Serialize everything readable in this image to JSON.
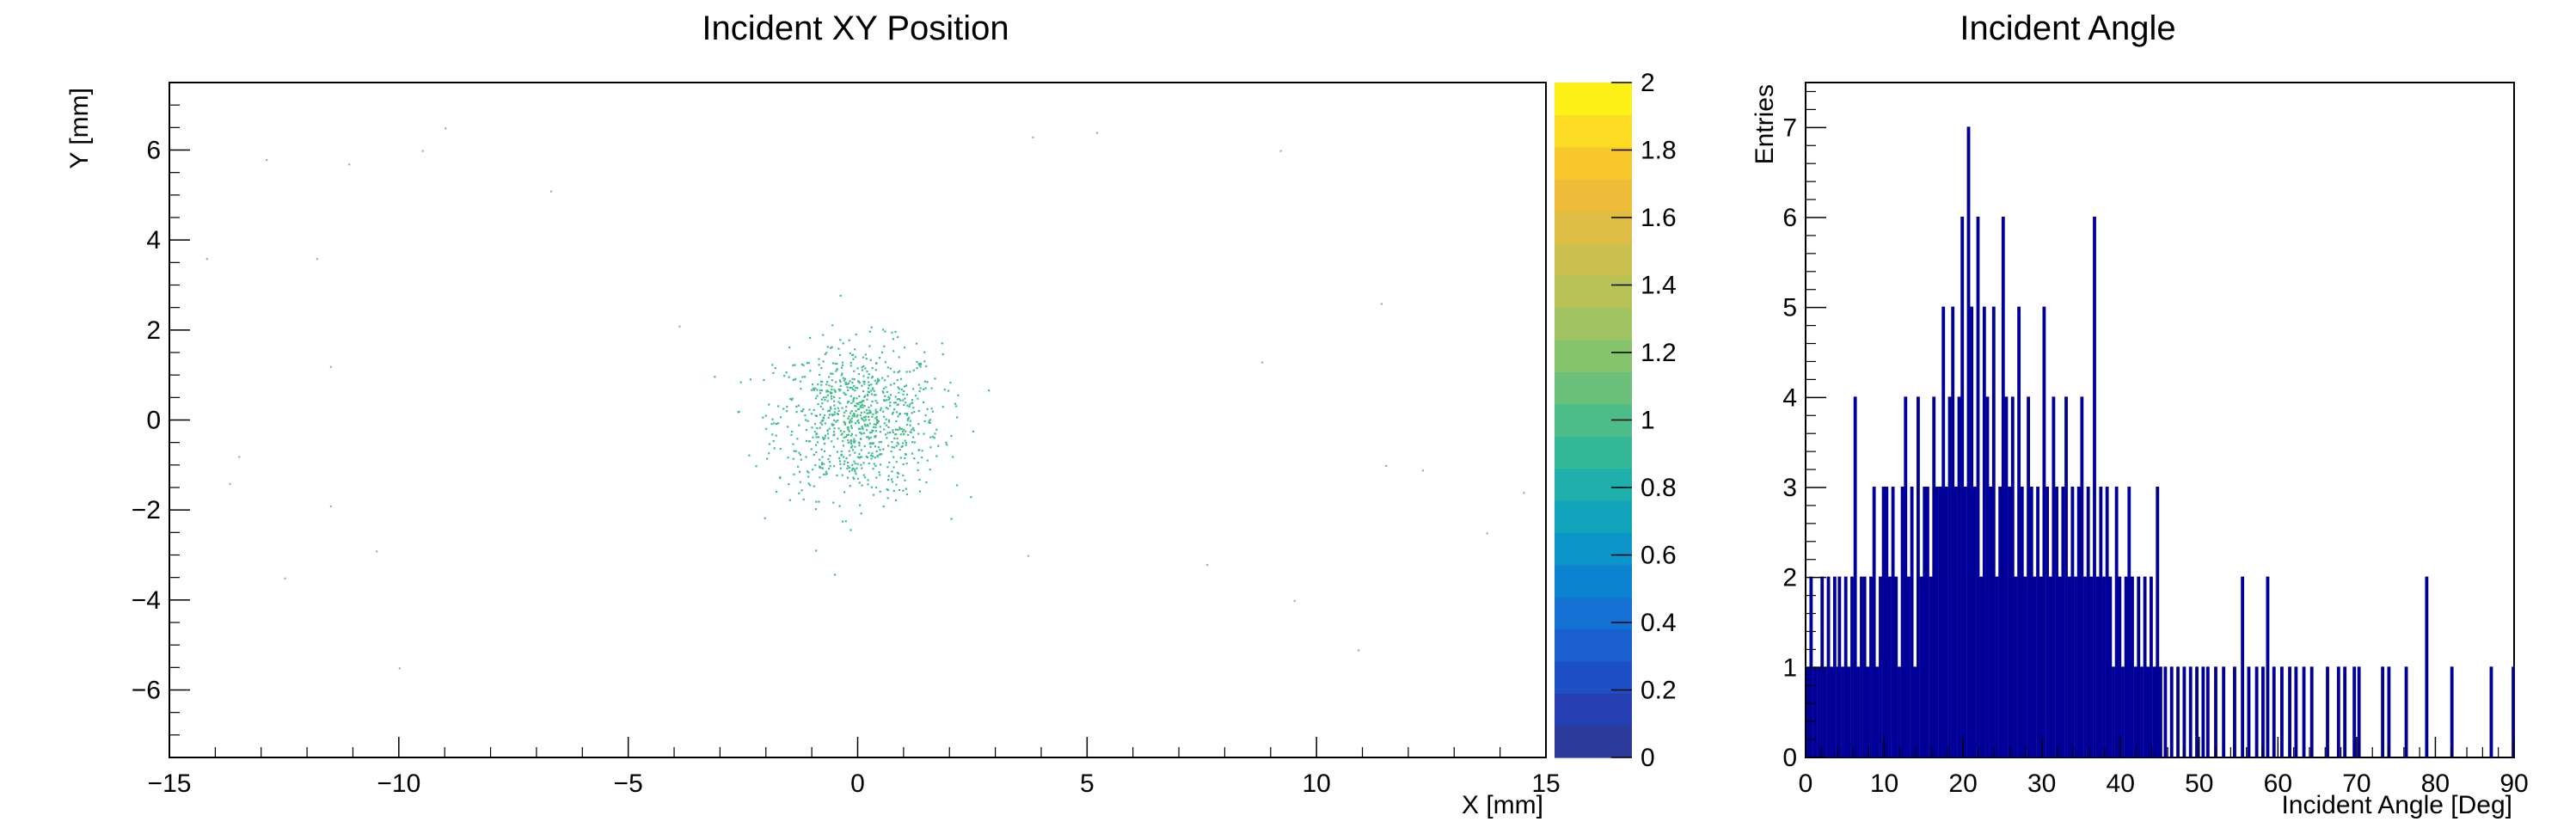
{
  "chart_data": [
    {
      "type": "heatmap",
      "title": "Incident XY Position",
      "xlabel": "X [mm]",
      "ylabel": "Y [mm]",
      "xlim": [
        -15,
        15
      ],
      "ylim": [
        -7.5,
        7.5
      ],
      "x_ticks": [
        "−15",
        "−10",
        "−5",
        "0",
        "5",
        "10",
        "15"
      ],
      "y_ticks": [
        "−6",
        "−4",
        "−2",
        "0",
        "2",
        "4",
        "6"
      ],
      "colorbar": {
        "range": [
          0,
          2
        ],
        "ticks": [
          "0",
          "0.2",
          "0.4",
          "0.6",
          "0.8",
          "1",
          "1.2",
          "1.4",
          "1.6",
          "1.8",
          "2"
        ],
        "colors": [
          "#2b3a9b",
          "#253fb3",
          "#1f4fc6",
          "#1a60d1",
          "#1371d4",
          "#0c83d0",
          "#0b95c8",
          "#12a3bc",
          "#1fafab",
          "#33b898",
          "#4cbd88",
          "#6ac07a",
          "#86c36d",
          "#a0c361",
          "#b8c256",
          "#cbbf4e",
          "#ddbd44",
          "#eebc38",
          "#f8c82c",
          "#fbdc22",
          "#fdf017"
        ]
      },
      "cluster": {
        "center": [
          0,
          0
        ],
        "sigma": [
          0.9,
          0.85
        ],
        "count": 900,
        "color": "#3fbd8b"
      },
      "outliers": {
        "points": [
          [
            -14.2,
            3.6
          ],
          [
            -13.5,
            -0.8
          ],
          [
            -13.7,
            -1.4
          ],
          [
            -12.9,
            5.8
          ],
          [
            -12.5,
            -3.5
          ],
          [
            -11.8,
            3.6
          ],
          [
            -11.5,
            1.2
          ],
          [
            -11.5,
            -1.9
          ],
          [
            -11.1,
            5.7
          ],
          [
            -10.5,
            -2.9
          ],
          [
            -10.0,
            -5.5
          ],
          [
            -9.5,
            6.0
          ],
          [
            -9.0,
            6.5
          ],
          [
            -6.7,
            5.1
          ],
          [
            -3.9,
            2.1
          ],
          [
            3.7,
            -3.0
          ],
          [
            3.8,
            6.3
          ],
          [
            5.2,
            6.4
          ],
          [
            7.6,
            -3.2
          ],
          [
            8.8,
            1.3
          ],
          [
            9.2,
            6.0
          ],
          [
            9.5,
            -4.0
          ],
          [
            10.9,
            -5.1
          ],
          [
            11.4,
            2.6
          ],
          [
            11.5,
            -1.0
          ],
          [
            12.3,
            -1.1
          ],
          [
            13.7,
            -2.5
          ],
          [
            14.5,
            -1.6
          ]
        ],
        "color": "#8ab0d8"
      }
    },
    {
      "type": "bar",
      "title": "Incident Angle",
      "xlabel": "Incident Angle [Deg]",
      "ylabel": "Entries",
      "xlim": [
        0,
        90
      ],
      "ylim": [
        0,
        7.5
      ],
      "x_ticks": [
        "0",
        "10",
        "20",
        "30",
        "40",
        "50",
        "60",
        "70",
        "80",
        "90"
      ],
      "y_ticks": [
        "0",
        "1",
        "2",
        "3",
        "4",
        "5",
        "6",
        "7"
      ],
      "bin_width": 0.2,
      "color": "#000099",
      "bins": [
        [
          0.2,
          1
        ],
        [
          0.6,
          2
        ],
        [
          1.0,
          1
        ],
        [
          1.2,
          1
        ],
        [
          1.6,
          1
        ],
        [
          2.0,
          2
        ],
        [
          2.4,
          1
        ],
        [
          2.8,
          2
        ],
        [
          3.2,
          1
        ],
        [
          3.6,
          2
        ],
        [
          4.0,
          1
        ],
        [
          4.2,
          2
        ],
        [
          4.6,
          1
        ],
        [
          5.0,
          2
        ],
        [
          5.4,
          1
        ],
        [
          5.8,
          2
        ],
        [
          6.2,
          4
        ],
        [
          6.6,
          1
        ],
        [
          7.0,
          2
        ],
        [
          7.4,
          2
        ],
        [
          7.8,
          1
        ],
        [
          8.2,
          2
        ],
        [
          8.6,
          3
        ],
        [
          9.0,
          1
        ],
        [
          9.4,
          2
        ],
        [
          9.8,
          3
        ],
        [
          10.2,
          3
        ],
        [
          10.6,
          2
        ],
        [
          11.0,
          3
        ],
        [
          11.4,
          2
        ],
        [
          11.8,
          1
        ],
        [
          12.2,
          3
        ],
        [
          12.6,
          4
        ],
        [
          13.0,
          2
        ],
        [
          13.4,
          3
        ],
        [
          13.8,
          1
        ],
        [
          14.2,
          4
        ],
        [
          14.6,
          2
        ],
        [
          15.0,
          3
        ],
        [
          15.4,
          3
        ],
        [
          15.8,
          2
        ],
        [
          16.2,
          4
        ],
        [
          16.6,
          3
        ],
        [
          17.0,
          3
        ],
        [
          17.4,
          5
        ],
        [
          17.8,
          3
        ],
        [
          18.2,
          4
        ],
        [
          18.6,
          5
        ],
        [
          19.0,
          3
        ],
        [
          19.4,
          4
        ],
        [
          19.8,
          6
        ],
        [
          20.2,
          3
        ],
        [
          20.6,
          7
        ],
        [
          21.0,
          5
        ],
        [
          21.4,
          3
        ],
        [
          21.8,
          6
        ],
        [
          22.2,
          2
        ],
        [
          22.6,
          5
        ],
        [
          23.0,
          4
        ],
        [
          23.4,
          3
        ],
        [
          23.8,
          5
        ],
        [
          24.2,
          2
        ],
        [
          24.6,
          3
        ],
        [
          25.0,
          6
        ],
        [
          25.4,
          4
        ],
        [
          25.8,
          3
        ],
        [
          26.2,
          4
        ],
        [
          26.6,
          2
        ],
        [
          27.0,
          5
        ],
        [
          27.4,
          3
        ],
        [
          27.8,
          2
        ],
        [
          28.2,
          4
        ],
        [
          28.6,
          3
        ],
        [
          29.0,
          2
        ],
        [
          29.4,
          3
        ],
        [
          29.8,
          2
        ],
        [
          30.2,
          5
        ],
        [
          30.6,
          3
        ],
        [
          31.0,
          2
        ],
        [
          31.4,
          4
        ],
        [
          31.8,
          3
        ],
        [
          32.2,
          2
        ],
        [
          32.6,
          3
        ],
        [
          33.0,
          4
        ],
        [
          33.4,
          2
        ],
        [
          33.8,
          3
        ],
        [
          34.2,
          2
        ],
        [
          34.6,
          3
        ],
        [
          35.0,
          4
        ],
        [
          35.4,
          2
        ],
        [
          35.8,
          3
        ],
        [
          36.2,
          2
        ],
        [
          36.6,
          6
        ],
        [
          37.0,
          2
        ],
        [
          37.4,
          3
        ],
        [
          37.8,
          2
        ],
        [
          38.2,
          3
        ],
        [
          38.6,
          2
        ],
        [
          39.0,
          1
        ],
        [
          39.4,
          3
        ],
        [
          39.8,
          2
        ],
        [
          40.2,
          1
        ],
        [
          40.6,
          2
        ],
        [
          41.0,
          3
        ],
        [
          41.4,
          2
        ],
        [
          41.8,
          1
        ],
        [
          42.2,
          2
        ],
        [
          42.6,
          1
        ],
        [
          43.0,
          2
        ],
        [
          43.4,
          1
        ],
        [
          43.8,
          2
        ],
        [
          44.2,
          1
        ],
        [
          44.6,
          3
        ],
        [
          45.0,
          1
        ],
        [
          45.6,
          1
        ],
        [
          46.4,
          1
        ],
        [
          47.2,
          1
        ],
        [
          48.0,
          1
        ],
        [
          48.8,
          1
        ],
        [
          49.6,
          1
        ],
        [
          50.4,
          1
        ],
        [
          51.0,
          1
        ],
        [
          52.0,
          1
        ],
        [
          53.0,
          1
        ],
        [
          54.4,
          1
        ],
        [
          55.4,
          2
        ],
        [
          56.2,
          1
        ],
        [
          57.2,
          1
        ],
        [
          58.0,
          1
        ],
        [
          58.6,
          2
        ],
        [
          59.4,
          1
        ],
        [
          60.4,
          1
        ],
        [
          61.4,
          1
        ],
        [
          62.2,
          1
        ],
        [
          63.2,
          1
        ],
        [
          64.2,
          1
        ],
        [
          66.2,
          1
        ],
        [
          67.6,
          1
        ],
        [
          68.4,
          1
        ],
        [
          69.6,
          1
        ],
        [
          70.2,
          1
        ],
        [
          73.2,
          1
        ],
        [
          74.0,
          1
        ],
        [
          76.2,
          1
        ],
        [
          78.8,
          2
        ],
        [
          82.0,
          1
        ],
        [
          87.0,
          1
        ],
        [
          89.8,
          1
        ]
      ]
    }
  ]
}
